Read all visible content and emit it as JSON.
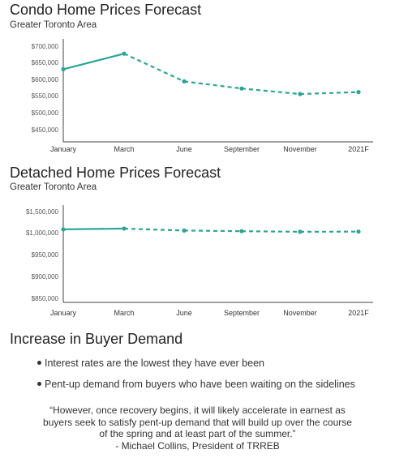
{
  "line_color": "#2aa594",
  "chart_data": [
    {
      "type": "line",
      "title": "Condo Home Prices Forecast",
      "subtitle": "Greater Toronto Area",
      "categories": [
        "January",
        "March",
        "June",
        "September",
        "November",
        "2021F"
      ],
      "yticks": [
        "$700,000",
        "$650,000",
        "$600,000",
        "$550,000",
        "$500,000",
        "$450,000"
      ],
      "ylim": [
        440000,
        710000
      ],
      "values": [
        630000,
        677000,
        594000,
        572000,
        555000,
        561000
      ],
      "actual_through_index": 1,
      "forecast_from_index": 2,
      "grid": false
    },
    {
      "type": "line",
      "title": "Detached Home Prices Forecast",
      "subtitle": "Greater Toronto Area",
      "categories": [
        "January",
        "March",
        "June",
        "September",
        "November",
        "2021F"
      ],
      "yticks": [
        "$1,500,000",
        "$1,000,000",
        "$950,000",
        "$900,000",
        "$850,000"
      ],
      "ylim": [
        840000,
        1510000
      ],
      "values": [
        1078000,
        1097000,
        1050000,
        1035000,
        1021000,
        1025000
      ],
      "actual_through_index": 1,
      "forecast_from_index": 2,
      "grid": false
    }
  ],
  "section": {
    "heading": "Increase in Buyer Demand",
    "bullets": [
      "Interest rates are the lowest they have ever been",
      "Pent-up demand from buyers who have been waiting on the sidelines"
    ],
    "quote_lines": [
      "“However, once recovery begins, it will likely accelerate in earnest as",
      "buyers seek to satisfy pent-up demand that will build up over the course",
      "of the spring and at least part of the summer.”",
      "- Michael Collins, President of TRREB"
    ]
  }
}
